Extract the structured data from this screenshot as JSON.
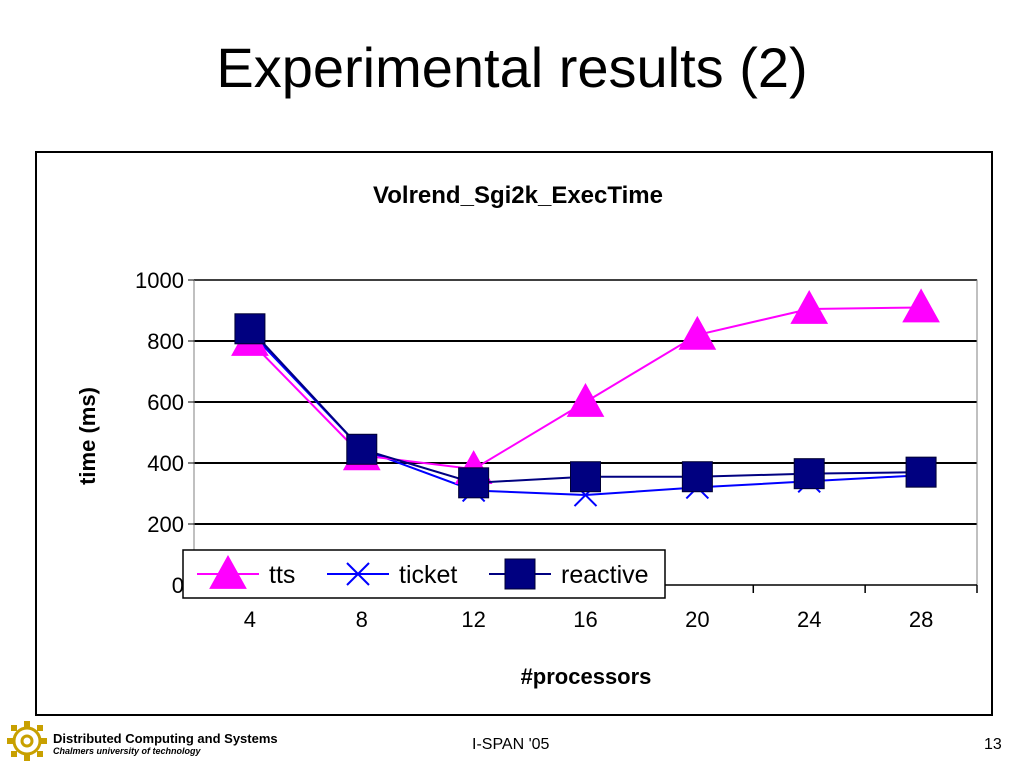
{
  "slide": {
    "title": "Experimental results (2)",
    "footer_center": "I-SPAN '05",
    "page_number": "13",
    "logo_line1": "Distributed Computing and Systems",
    "logo_line2": "Chalmers university of technology"
  },
  "colors": {
    "tts": "#ff00ff",
    "ticket": "#0000ff",
    "reactive": "#000080",
    "logo": "#c8a000"
  },
  "chart_data": {
    "type": "line",
    "title": "Volrend_Sgi2k_ExecTime",
    "xlabel": "#processors",
    "ylabel": "time (ms)",
    "x": [
      4,
      8,
      12,
      16,
      20,
      24,
      28
    ],
    "ylim": [
      0,
      1000
    ],
    "yticks": [
      0,
      200,
      400,
      600,
      800,
      1000
    ],
    "grid": true,
    "legend_position": "bottom-left",
    "series": [
      {
        "name": "tts",
        "marker": "triangle",
        "values": [
          800,
          425,
          380,
          600,
          820,
          905,
          910
        ]
      },
      {
        "name": "ticket",
        "marker": "x",
        "values": [
          830,
          445,
          310,
          295,
          320,
          340,
          360
        ]
      },
      {
        "name": "reactive",
        "marker": "square",
        "values": [
          840,
          445,
          335,
          355,
          355,
          365,
          370
        ]
      }
    ]
  }
}
